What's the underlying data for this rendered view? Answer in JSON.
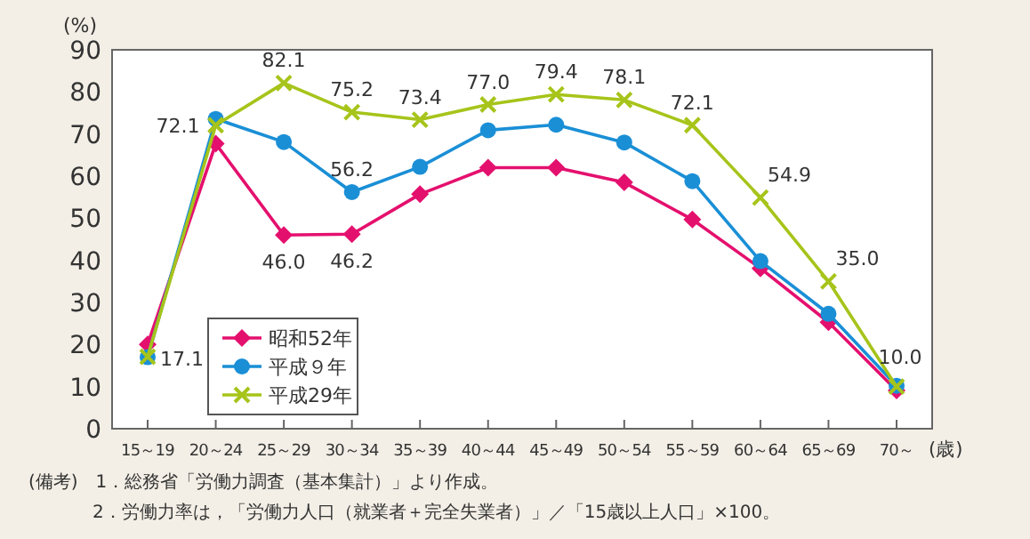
{
  "chart_data": {
    "type": "line",
    "ylabel": "(%)",
    "xlabel": "(歳)",
    "categories": [
      "15～19",
      "20～24",
      "25～29",
      "30～34",
      "35～39",
      "40～44",
      "45～49",
      "50～54",
      "55～59",
      "60～64",
      "65～69",
      "70～"
    ],
    "ylim": [
      0,
      90
    ],
    "yticks": [
      0,
      10,
      20,
      30,
      40,
      50,
      60,
      70,
      80,
      90
    ],
    "grid": false,
    "legend": "bottom left",
    "series": [
      {
        "name": "昭和52年",
        "color": "#e4106e",
        "marker": "diamond",
        "values": [
          20.0,
          67.7,
          46.0,
          46.2,
          55.7,
          62.0,
          62.0,
          58.5,
          49.7,
          38.1,
          25.3,
          9.1
        ],
        "value_labels": [
          null,
          null,
          "46.0",
          "46.2",
          null,
          null,
          null,
          null,
          null,
          null,
          null,
          null
        ]
      },
      {
        "name": "平成９年",
        "color": "#1a8fd6",
        "marker": "circle",
        "values": [
          17.0,
          73.6,
          68.1,
          56.2,
          62.2,
          70.9,
          72.2,
          68.0,
          58.8,
          39.8,
          27.3,
          10.2
        ],
        "value_labels": [
          null,
          null,
          null,
          "56.2",
          null,
          null,
          null,
          null,
          null,
          null,
          null,
          null
        ]
      },
      {
        "name": "平成29年",
        "color": "#a6c41a",
        "marker": "cross",
        "values": [
          17.1,
          72.1,
          82.1,
          75.2,
          73.4,
          77.0,
          79.4,
          78.1,
          72.1,
          54.9,
          35.0,
          10.0
        ],
        "value_labels": [
          "17.1",
          "72.1",
          "82.1",
          "75.2",
          "73.4",
          "77.0",
          "79.4",
          "78.1",
          "72.1",
          "54.9",
          "35.0",
          "10.0"
        ]
      }
    ],
    "annotations": [
      "(備考)　1．総務省「労働力調査（基本集計）」より作成。",
      "2．労働力率は，「労働力人口（就業者＋完全失業者）」／「15歳以上人口」×100。"
    ]
  }
}
